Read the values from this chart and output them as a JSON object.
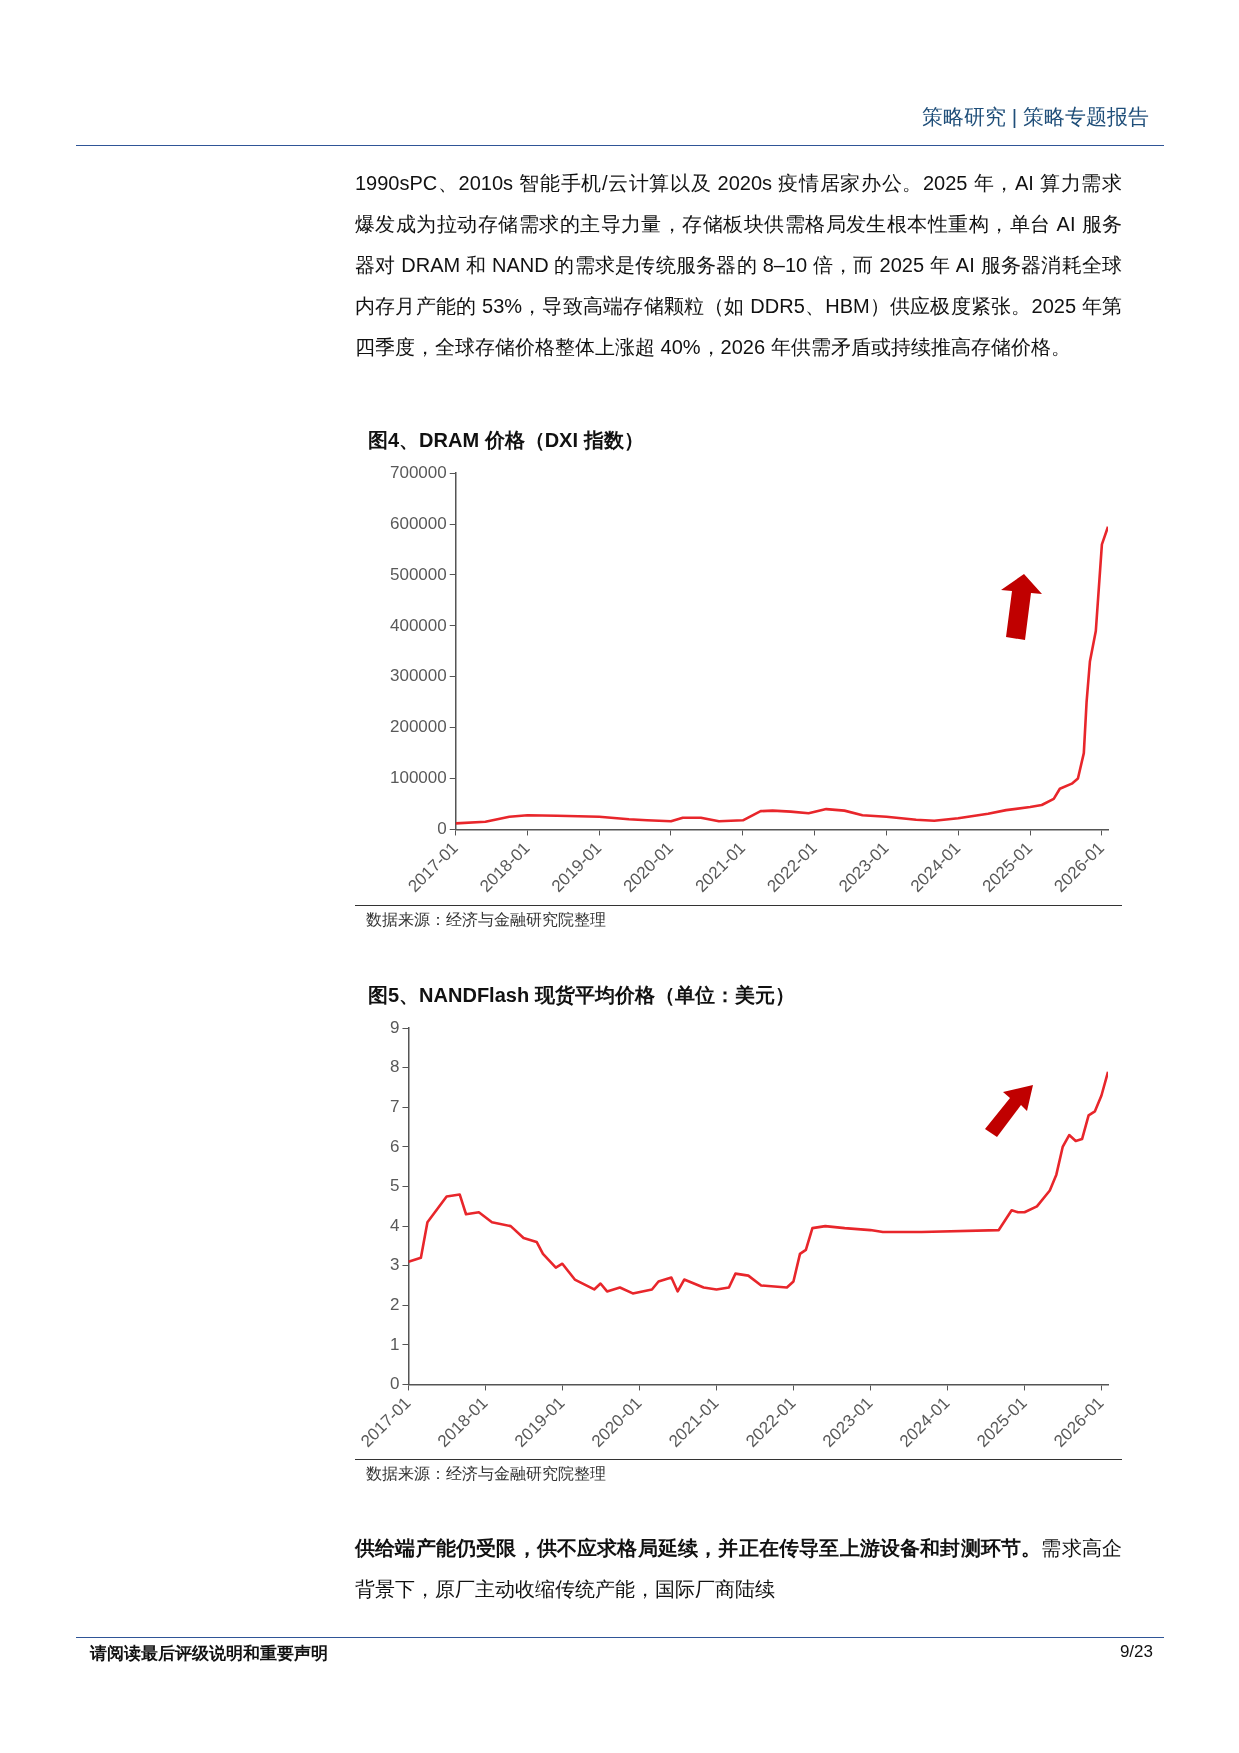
{
  "chart_data": [
    {
      "type": "line",
      "title": "图4、DRAM 价格（DXI 指数）",
      "xlim": [
        "2017-01",
        "2026-02"
      ],
      "xticks": [
        "2017-01",
        "2018-01",
        "2019-01",
        "2020-01",
        "2021-01",
        "2022-01",
        "2023-01",
        "2024-01",
        "2025-01",
        "2026-01"
      ],
      "ylim": [
        0,
        700000
      ],
      "yticks": [
        0,
        100000,
        200000,
        300000,
        400000,
        500000,
        600000,
        700000
      ],
      "grid": false,
      "legend": false,
      "annotations": [
        "策略研究 | 策略专题报告",
        "1990sPC、2010s 智能手机/云计算以及 2020s 疫情居家办公。2025 年，AI 算力需求爆发成为拉动存储需求的主导力量，存储板块供需格局发生根本性重构，单台 AI 服务器对 DRAM 和 NAND 的需求是传统服务器的 8–10 倍，而 2025 年 AI 服务器消耗全球内存月产能的 53%，导致高端存储颗粒（如 DDR5、HBM）供应极度紧张。2025 年第四季度，全球存储价格整体上涨超 40%，2026 年供需矛盾或持续推高存储价格。",
        "数据来源：经济与金融研究院整理"
      ],
      "series": [
        {
          "color": "#e8262b",
          "x": [
            "2017-01",
            "2017-06",
            "2017-10",
            "2018-01",
            "2018-06",
            "2019-01",
            "2019-06",
            "2019-09",
            "2020-01",
            "2020-03",
            "2020-06",
            "2020-09",
            "2021-01",
            "2021-04",
            "2021-06",
            "2021-09",
            "2021-12",
            "2022-03",
            "2022-06",
            "2022-09",
            "2023-01",
            "2023-06",
            "2023-09",
            "2024-01",
            "2024-06",
            "2024-09",
            "2025-01",
            "2025-03",
            "2025-05",
            "2025-06",
            "2025-08",
            "2025-09",
            "2025-10",
            "2025-10-15",
            "2025-11",
            "2025-12",
            "2026-01",
            "2026-02"
          ],
          "values": [
            12000,
            15000,
            25000,
            28000,
            27000,
            25000,
            20000,
            18000,
            16000,
            23000,
            23000,
            16000,
            18000,
            36000,
            37000,
            35000,
            32000,
            40000,
            37000,
            28000,
            25000,
            19000,
            17000,
            22000,
            31000,
            38000,
            44000,
            48000,
            60000,
            80000,
            90000,
            100000,
            150000,
            250000,
            330000,
            390000,
            560000,
            595000
          ]
        }
      ]
    },
    {
      "type": "line",
      "title": "图5、NANDFlash 现货平均价格（单位：美元）",
      "xlim": [
        "2017-01",
        "2026-02"
      ],
      "xticks": [
        "2017-01",
        "2018-01",
        "2019-01",
        "2020-01",
        "2021-01",
        "2022-01",
        "2023-01",
        "2024-01",
        "2025-01",
        "2026-01"
      ],
      "ylim": [
        0,
        9
      ],
      "yticks": [
        0,
        1,
        2,
        3,
        4,
        5,
        6,
        7,
        8,
        9
      ],
      "grid": false,
      "legend": false,
      "annotations": [
        "数据来源：经济与金融研究院整理",
        "供给端产能仍受限，供不应求格局延续，并正在传导至上游设备和封测环节。",
        "需求高企背景下，原厂主动收缩传统产能，国际厂商陆续",
        "请阅读最后评级说明和重要声明",
        "9/23"
      ],
      "series": [
        {
          "color": "#e8262b",
          "x": [
            "2017-01",
            "2017-03",
            "2017-04",
            "2017-07",
            "2017-09",
            "2017-10",
            "2017-12",
            "2018-02",
            "2018-05",
            "2018-07",
            "2018-09",
            "2018-10",
            "2018-12",
            "2019-01",
            "2019-03",
            "2019-06",
            "2019-07",
            "2019-08",
            "2019-10",
            "2019-12",
            "2020-03",
            "2020-04",
            "2020-06",
            "2020-07",
            "2020-08",
            "2020-11",
            "2021-01",
            "2021-03",
            "2021-04",
            "2021-06",
            "2021-08",
            "2021-12",
            "2022-01",
            "2022-02",
            "2022-03",
            "2022-04",
            "2022-06",
            "2022-09",
            "2023-01",
            "2023-03",
            "2023-09",
            "2024-09",
            "2024-11",
            "2024-12",
            "2025-01",
            "2025-03",
            "2025-05",
            "2025-06",
            "2025-07",
            "2025-08",
            "2025-09",
            "2025-10",
            "2025-11",
            "2025-12",
            "2026-01",
            "2026-02"
          ],
          "values": [
            3.1,
            3.2,
            4.1,
            4.75,
            4.8,
            4.3,
            4.35,
            4.1,
            4.0,
            3.7,
            3.6,
            3.3,
            2.95,
            3.05,
            2.65,
            2.4,
            2.55,
            2.35,
            2.45,
            2.3,
            2.4,
            2.6,
            2.7,
            2.35,
            2.65,
            2.45,
            2.4,
            2.45,
            2.8,
            2.75,
            2.5,
            2.45,
            2.6,
            3.3,
            3.4,
            3.95,
            4.0,
            3.95,
            3.9,
            3.85,
            3.85,
            3.9,
            4.4,
            4.35,
            4.35,
            4.5,
            4.9,
            5.3,
            6.0,
            6.3,
            6.15,
            6.2,
            6.8,
            6.9,
            7.3,
            7.9
          ]
        }
      ]
    }
  ]
}
